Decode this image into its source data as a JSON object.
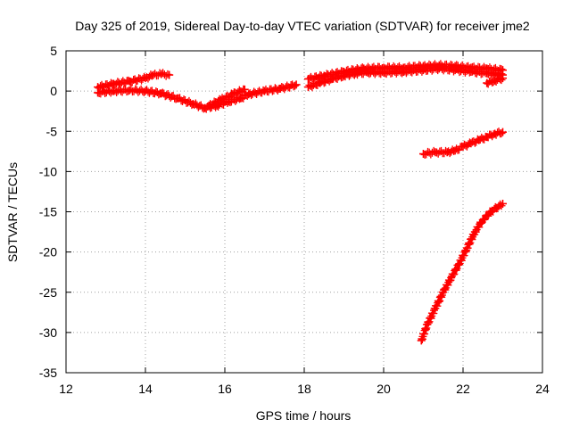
{
  "chart_data": {
    "type": "scatter",
    "title": "Day 325 of 2019, Sidereal Day-to-day VTEC variation (SDTVAR) for receiver jme2",
    "xlabel": "GPS time / hours",
    "ylabel": "SDTVAR / TECUs",
    "xlim": [
      12,
      24
    ],
    "ylim": [
      -35,
      5
    ],
    "xticks": [
      "12",
      "14",
      "16",
      "18",
      "20",
      "22",
      "24"
    ],
    "yticks": [
      "5",
      "0",
      "-5",
      "-10",
      "-15",
      "-20",
      "-25",
      "-30",
      "-35"
    ],
    "grid": true,
    "legend": "none",
    "marker": "plus",
    "series_color": "#ff0000",
    "series": [
      {
        "x": [
          12.8,
          13.2,
          13.6,
          14.0,
          14.2,
          14.4,
          14.6
        ],
        "y": [
          0.5,
          0.9,
          1.2,
          1.6,
          2.0,
          2.1,
          2.0
        ]
      },
      {
        "x": [
          12.8,
          13.2,
          13.6,
          14.0,
          14.4,
          14.8,
          15.2,
          15.5,
          15.8,
          16.1,
          16.4,
          16.6,
          17.0,
          17.4,
          17.8
        ],
        "y": [
          -0.2,
          0.0,
          0.1,
          0.0,
          -0.3,
          -0.9,
          -1.6,
          -2.1,
          -1.8,
          -1.3,
          -0.9,
          -0.4,
          0.0,
          0.3,
          0.8
        ]
      },
      {
        "x": [
          15.6,
          15.9,
          16.2,
          16.5
        ],
        "y": [
          -1.8,
          -1.1,
          -0.4,
          0.2
        ]
      },
      {
        "x": [
          18.1,
          18.4,
          18.7,
          19.0,
          19.3,
          19.6,
          20.0,
          20.5,
          21.0,
          21.4,
          21.8,
          22.2,
          22.6,
          23.0
        ],
        "y": [
          0.5,
          1.0,
          1.5,
          1.9,
          2.2,
          2.3,
          2.3,
          2.4,
          2.6,
          2.8,
          2.6,
          2.4,
          2.2,
          2.0
        ]
      },
      {
        "x": [
          18.1,
          18.5,
          19.0,
          19.5,
          20.0,
          20.5,
          21.0,
          21.4,
          21.8,
          22.2,
          22.6,
          23.0
        ],
        "y": [
          1.5,
          1.9,
          2.4,
          2.8,
          2.9,
          2.9,
          3.1,
          3.2,
          3.1,
          2.9,
          2.8,
          2.6
        ]
      },
      {
        "x": [
          22.6,
          22.8,
          23.0
        ],
        "y": [
          1.0,
          1.3,
          1.6
        ]
      },
      {
        "x": [
          21.0,
          21.3,
          21.6,
          21.8,
          22.0,
          22.2,
          22.4,
          22.6,
          22.8,
          23.0
        ],
        "y": [
          -7.8,
          -7.6,
          -7.6,
          -7.4,
          -6.9,
          -6.5,
          -6.1,
          -5.7,
          -5.3,
          -5.1
        ]
      },
      {
        "x": [
          20.95,
          21.1,
          21.3,
          21.5,
          21.7,
          21.9,
          22.1,
          22.3,
          22.5,
          22.7,
          22.9,
          23.0
        ],
        "y": [
          -31.0,
          -29.0,
          -27.0,
          -25.0,
          -23.2,
          -21.5,
          -19.5,
          -17.5,
          -16.0,
          -15.0,
          -14.3,
          -14.0
        ]
      }
    ]
  }
}
